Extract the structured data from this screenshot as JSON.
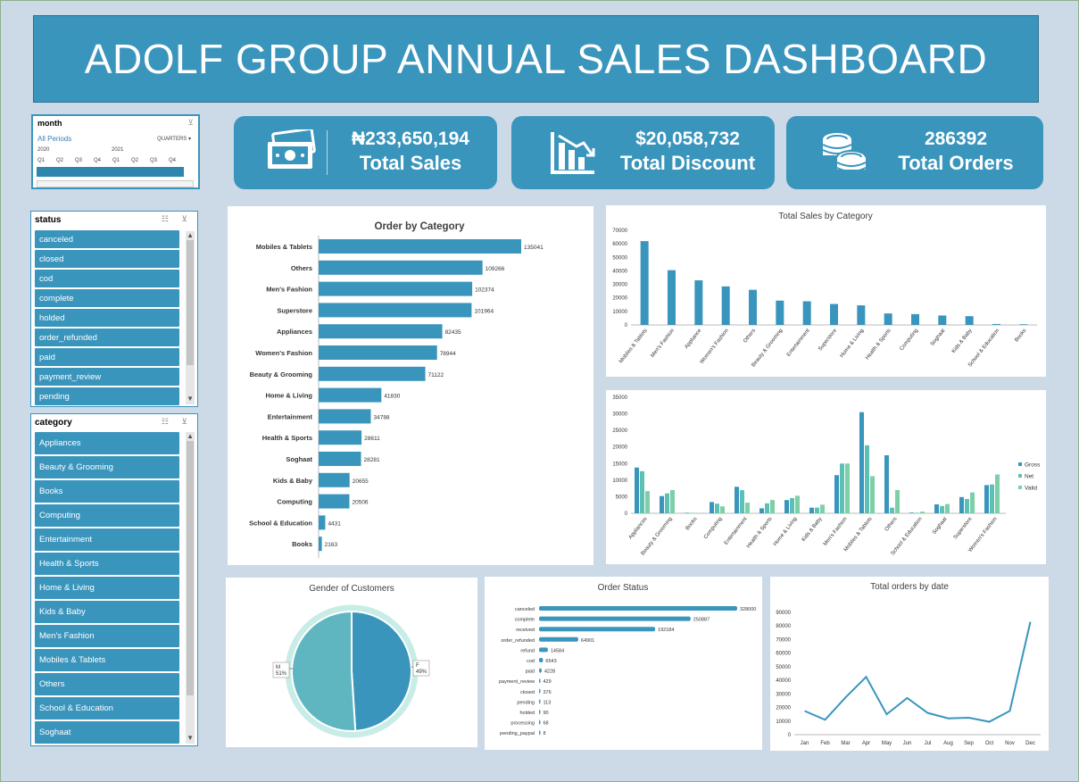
{
  "dashboard": {
    "title": "ADOLF GROUP ANNUAL SALES DASHBOARD"
  },
  "timeline": {
    "title": "month",
    "all_periods": "All Periods",
    "level": "QUARTERS",
    "years": [
      "2020",
      "2021"
    ],
    "quarters": [
      "Q1",
      "Q2",
      "Q3",
      "Q4",
      "Q1",
      "Q2",
      "Q3",
      "Q4"
    ]
  },
  "status_slicer": {
    "title": "status",
    "items": [
      "canceled",
      "closed",
      "cod",
      "complete",
      "holded",
      "order_refunded",
      "paid",
      "payment_review",
      "pending"
    ]
  },
  "category_slicer": {
    "title": "category",
    "items": [
      "Appliances",
      "Beauty & Grooming",
      "Books",
      "Computing",
      "Entertainment",
      "Health & Sports",
      "Home & Living",
      "Kids & Baby",
      "Men's Fashion",
      "Mobiles & Tablets",
      "Others",
      "School & Education",
      "Soghaat"
    ]
  },
  "kpis": {
    "sales": {
      "value": "₦233,650,194",
      "label": "Total Sales",
      "icon": "money-icon"
    },
    "discount": {
      "value": "$20,058,732",
      "label": "Total Discount",
      "icon": "chart-decline-icon"
    },
    "orders": {
      "value": "286392",
      "label": "Total Orders",
      "icon": "coins-icon"
    }
  },
  "colors": {
    "accent": "#3a95bd",
    "net": "#5cc0b5",
    "valid": "#7ecfa8",
    "pie_m": "#5fb6c0",
    "background": "#ccd9e6"
  },
  "chart_data": [
    {
      "id": "order_by_category",
      "type": "bar",
      "orientation": "horizontal",
      "title": "Order by Category",
      "categories": [
        "Mobiles & Tablets",
        "Others",
        "Men's Fashion",
        "Superstore",
        "Appliances",
        "Women's Fashion",
        "Beauty & Grooming",
        "Home & Living",
        "Entertainment",
        "Health & Sports",
        "Soghaat",
        "Kids & Baby",
        "Computing",
        "School & Education",
        "Books"
      ],
      "values": [
        135041,
        109266,
        102374,
        101964,
        82435,
        78944,
        71122,
        41830,
        34788,
        28611,
        28281,
        20655,
        20506,
        4431,
        2163
      ]
    },
    {
      "id": "total_sales_by_category",
      "type": "bar",
      "title": "Total Sales by Category",
      "categories": [
        "Mobiles & Tablets",
        "Men's Fashion",
        "Appliance",
        "Women's Fashion",
        "Others",
        "Beauty & Grooming",
        "Entertainment",
        "Superstore",
        "Home & Living",
        "Health & Sports",
        "Computing",
        "Soghaat",
        "Kids & Baby",
        "School & Education",
        "Books"
      ],
      "values": [
        62000,
        40500,
        33000,
        28500,
        26000,
        18000,
        17500,
        15500,
        14500,
        8500,
        8000,
        7000,
        6500,
        700,
        500
      ],
      "ylim": [
        0,
        70000
      ],
      "yticks": [
        "0",
        "10000",
        "20000",
        "30000",
        "40000",
        "50000",
        "60000",
        "70000"
      ]
    },
    {
      "id": "gross_net_valid",
      "type": "bar",
      "categories": [
        "Appliances",
        "Beauty & Grooming",
        "Books",
        "Computing",
        "Entertainment",
        "Health & Sports",
        "Home & Living",
        "Kids & Baby",
        "Men's Fashion",
        "Mobiles & Tablets",
        "Others",
        "School & Education",
        "Soghaat",
        "Superstore",
        "Women's Fashion"
      ],
      "series": [
        {
          "name": "Gross",
          "values": [
            13800,
            5200,
            150,
            3400,
            8000,
            1500,
            4000,
            1700,
            11500,
            30500,
            17500,
            200,
            2700,
            4900,
            8500
          ]
        },
        {
          "name": "Net",
          "values": [
            12700,
            6000,
            120,
            2900,
            7000,
            3000,
            4600,
            1700,
            15000,
            20500,
            1700,
            150,
            2200,
            4300,
            8700
          ]
        },
        {
          "name": "Valid",
          "values": [
            6700,
            7000,
            100,
            2100,
            3200,
            4000,
            5300,
            2600,
            15000,
            11200,
            7000,
            500,
            2800,
            6300,
            11700
          ]
        }
      ],
      "ylim": [
        0,
        35000
      ],
      "yticks": [
        "0",
        "5000",
        "10000",
        "15000",
        "20000",
        "25000",
        "30000",
        "35000"
      ],
      "legend": "right"
    },
    {
      "id": "gender_of_customers",
      "type": "pie",
      "title": "Gender of Customers",
      "categories": [
        "F",
        "M"
      ],
      "values": [
        49,
        51
      ],
      "labels": [
        "F\n49%",
        "M\n51%"
      ]
    },
    {
      "id": "order_status",
      "type": "bar",
      "orientation": "horizontal",
      "title": "Order Status",
      "categories": [
        "canceled",
        "complete",
        "received",
        "order_refunded",
        "refund",
        "cod",
        "paid",
        "payment_review",
        "closed",
        "pending",
        "holded",
        "processing",
        "pending_paypal"
      ],
      "values": [
        328000,
        250887,
        192184,
        64901,
        14584,
        6543,
        4228,
        429,
        376,
        113,
        90,
        68,
        8
      ]
    },
    {
      "id": "total_orders_by_date",
      "type": "line",
      "title": "Total orders by date",
      "categories": [
        "Jan",
        "Feb",
        "Mar",
        "Apr",
        "May",
        "Jun",
        "Jul",
        "Aug",
        "Sep",
        "Oct",
        "Nov",
        "Dec"
      ],
      "values": [
        17500,
        11000,
        27500,
        42500,
        15000,
        27000,
        16000,
        12000,
        12500,
        9500,
        17500,
        83000
      ],
      "ylim": [
        0,
        90000
      ],
      "yticks": [
        "0",
        "10000",
        "20000",
        "30000",
        "40000",
        "50000",
        "60000",
        "70000",
        "80000",
        "90000"
      ]
    }
  ]
}
